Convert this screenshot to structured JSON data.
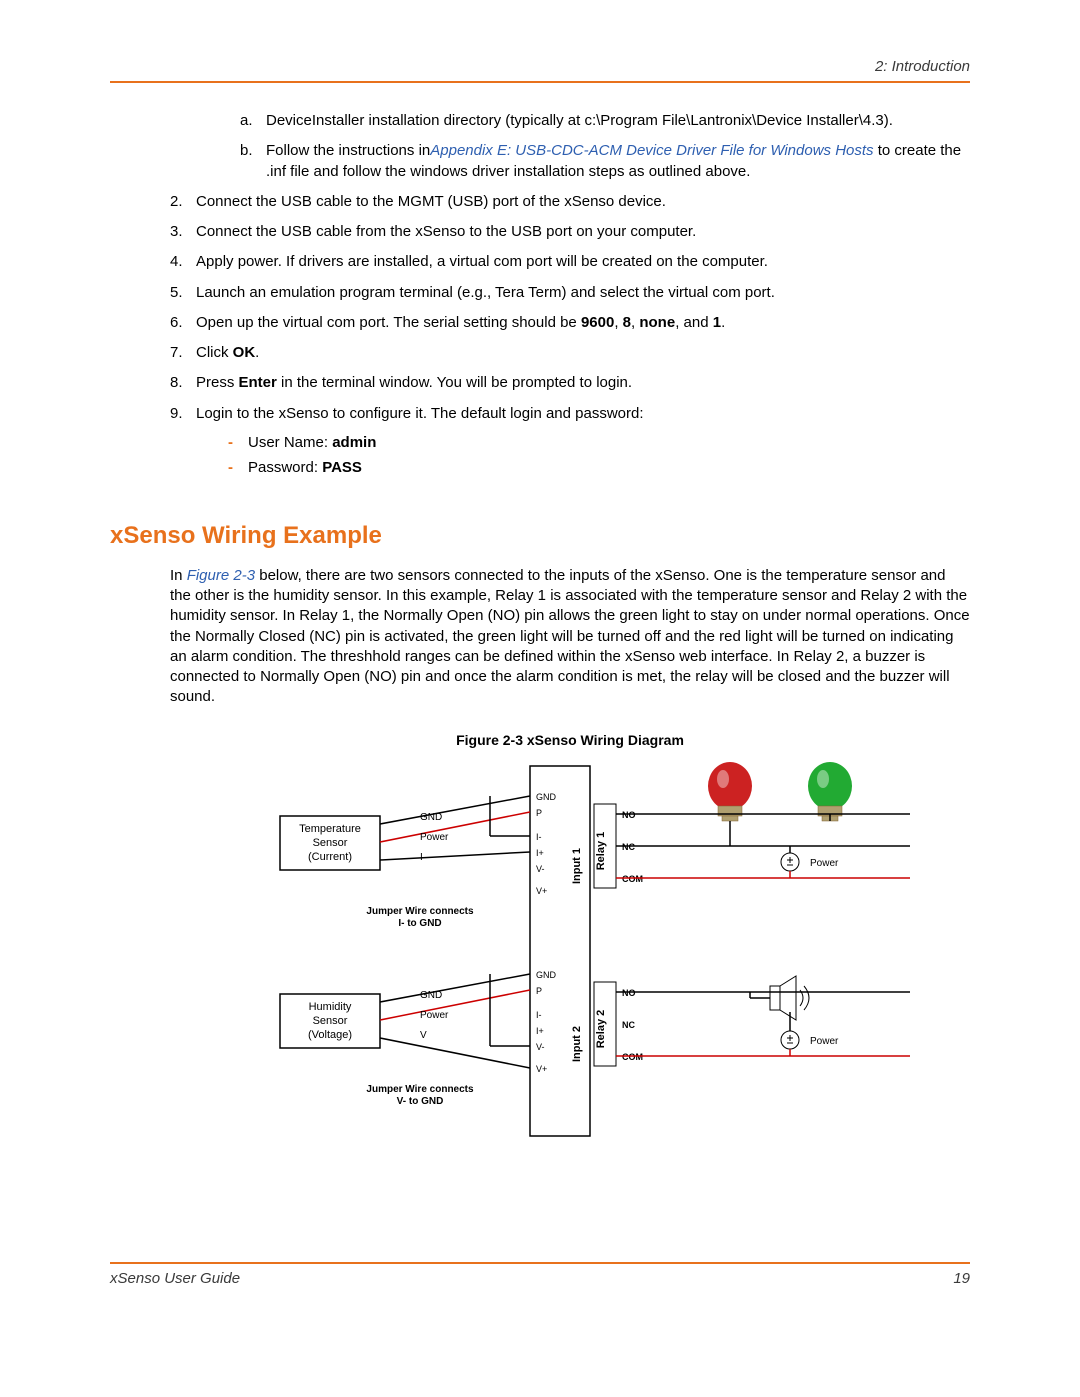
{
  "header": {
    "chapter": "2: Introduction"
  },
  "sublist": [
    {
      "marker": "a.",
      "text_before": "DeviceInstaller installation directory (typically at c:\\Program File\\Lantronix\\Device Installer\\4.3)."
    },
    {
      "marker": "b.",
      "text_before": "Follow the instructions in",
      "link": "Appendix E: USB-CDC-ACM Device Driver File for Windows Hosts",
      "text_after": " to create the .inf file and follow the windows driver installation steps as outlined above."
    }
  ],
  "steps": [
    {
      "n": "2.",
      "text": "Connect the USB cable to the MGMT (USB) port of the xSenso device."
    },
    {
      "n": "3.",
      "text": "Connect the USB cable from the xSenso to the USB port on your computer."
    },
    {
      "n": "4.",
      "text": "Apply power.  If drivers are installed, a virtual com port will be created on the computer."
    },
    {
      "n": "5.",
      "text": "Launch an emulation program terminal (e.g., Tera Term) and select the virtual com port."
    },
    {
      "n": "6.",
      "pre": "Open up the virtual com port.  The serial setting should be ",
      "b1": "9600",
      "s1": ", ",
      "b2": "8",
      "s2": ", ",
      "b3": "none",
      "s3": ", and ",
      "b4": "1",
      "post": "."
    },
    {
      "n": "7.",
      "pre": "Click ",
      "b1": "OK",
      "post": "."
    },
    {
      "n": "8.",
      "pre": "Press ",
      "b1": "Enter",
      "post": " in the terminal window.  You will be prompted to login."
    },
    {
      "n": "9.",
      "text": "Login to the xSenso to configure it.  The default login and password:"
    }
  ],
  "creds": [
    {
      "label": "User Name:  ",
      "value": "admin"
    },
    {
      "label": "Password:  ",
      "value": "PASS"
    }
  ],
  "section_title": "xSenso Wiring Example",
  "para": {
    "pre": "In ",
    "link": "Figure 2-3",
    "post": " below, there are two sensors connected to the inputs of the xSenso.  One is the temperature sensor and the other is the humidity sensor.  In this example, Relay 1 is associated with the temperature sensor and Relay 2 with the humidity sensor.  In Relay 1, the Normally Open (NO) pin allows the green light to stay on under normal operations.  Once the Normally Closed (NC) pin is activated, the green light will be turned off and the red light will be turned on indicating an alarm condition.  The threshhold ranges can be defined within the xSenso web interface.  In Relay 2, a buzzer is connected to Normally Open (NO) pin and once the alarm condition is met, the relay will be closed and the buzzer will sound."
  },
  "figure": {
    "caption": "Figure 2-3  xSenso Wiring Diagram",
    "colors": {
      "stroke": "#000000",
      "gnd_wire": "#000000",
      "power_wire": "#cc0000",
      "bulb_red": "#cc2222",
      "bulb_green": "#22aa33",
      "bulb_base": "#b0a070"
    },
    "labels": {
      "temp_sensor": [
        "Temperature",
        "Sensor",
        "(Current)"
      ],
      "hum_sensor": [
        "Humidity",
        "Sensor",
        "(Voltage)"
      ],
      "gnd": "GND",
      "power": "Power",
      "i": "I",
      "v": "V",
      "jumper1": [
        "Jumper Wire connects",
        "I- to GND"
      ],
      "jumper2": [
        "Jumper Wire connects",
        "V- to GND"
      ],
      "pins_in": [
        "GND",
        "P",
        "I-",
        "I+",
        "V-",
        "V+"
      ],
      "input1": "Input 1",
      "input2": "Input 2",
      "relay1": "Relay 1",
      "relay2": "Relay 2",
      "pins_out": [
        "NO",
        "NC",
        "COM"
      ],
      "power_right": "Power"
    }
  },
  "footer": {
    "title": "xSenso User Guide",
    "page": "19"
  }
}
